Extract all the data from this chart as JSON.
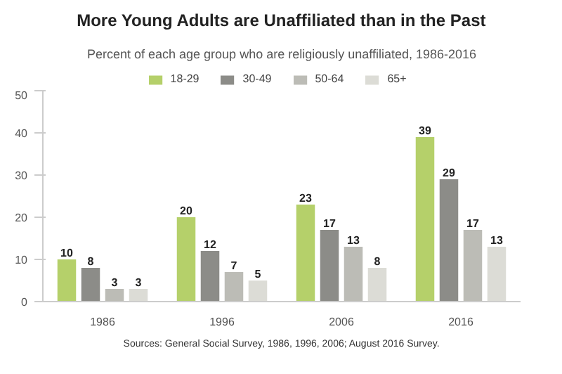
{
  "chart_data": {
    "type": "bar",
    "title": "More Young Adults are Unaffiliated than in the Past",
    "subtitle": "Percent of each age group who are religiously unaffiliated, 1986-2016",
    "categories": [
      "1986",
      "1996",
      "2006",
      "2016"
    ],
    "series": [
      {
        "name": "18-29",
        "color": "#b5d06a",
        "values": [
          10,
          20,
          23,
          39
        ]
      },
      {
        "name": "30-49",
        "color": "#8c8c88",
        "values": [
          8,
          12,
          17,
          29
        ]
      },
      {
        "name": "50-64",
        "color": "#bcbcb6",
        "values": [
          3,
          7,
          13,
          17
        ]
      },
      {
        "name": "65+",
        "color": "#dcdcd6",
        "values": [
          3,
          5,
          8,
          13
        ]
      }
    ],
    "ylim": [
      0,
      50
    ],
    "yticks": [
      0,
      10,
      20,
      30,
      40,
      50
    ],
    "grid": false,
    "legend": "top",
    "data_labels": true,
    "annotations": [
      "Sources: General Social Survey, 1986, 1996, 2006; August 2016 Survey."
    ]
  }
}
